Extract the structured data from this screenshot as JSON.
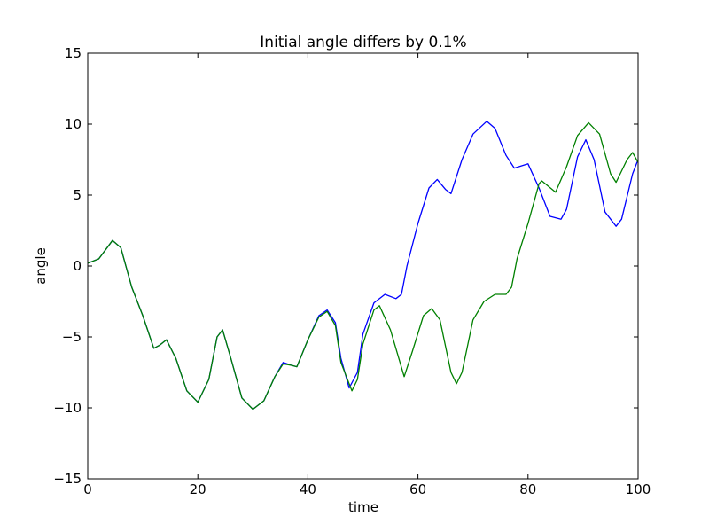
{
  "chart_data": {
    "type": "line",
    "title": "Initial angle differs by 0.1%",
    "x_label": "time",
    "y_label": "angle",
    "xlim": [
      0,
      100
    ],
    "ylim": [
      -15,
      15
    ],
    "xticks": [
      0,
      20,
      40,
      60,
      80,
      100
    ],
    "yticks": [
      {
        "value": -15,
        "label": "−15"
      },
      {
        "value": -10,
        "label": "−10"
      },
      {
        "value": -5,
        "label": "−5"
      },
      0,
      5,
      10,
      15
    ],
    "grid": false,
    "series": [
      {
        "color": "#0000ff",
        "x": [
          0,
          2,
          4.5,
          6,
          8,
          10,
          12,
          13,
          14.3,
          16,
          18,
          20,
          22,
          23.5,
          24.5,
          26,
          28,
          30,
          32,
          34,
          35.5,
          37,
          38,
          40,
          42,
          43.5,
          45,
          46,
          47.5,
          49,
          50,
          52,
          54,
          56,
          57,
          58,
          60,
          62,
          63.5,
          65,
          66,
          68,
          70,
          72.5,
          74,
          76,
          77.5,
          80,
          82,
          84,
          86,
          87,
          89,
          90.5,
          92,
          94,
          96,
          97,
          99,
          100
        ],
        "values": [
          0.2,
          0.5,
          1.8,
          1.3,
          -1.5,
          -3.5,
          -5.8,
          -5.6,
          -5.2,
          -6.5,
          -8.8,
          -9.6,
          -8,
          -5,
          -4.5,
          -6.5,
          -9.3,
          -10.1,
          -9.5,
          -7.8,
          -6.8,
          -7.0,
          -7.1,
          -5.2,
          -3.5,
          -3.1,
          -4,
          -6.5,
          -8.6,
          -7.5,
          -4.8,
          -2.6,
          -2.0,
          -2.3,
          -2,
          0,
          3,
          5.5,
          6.1,
          5.4,
          5.1,
          7.5,
          9.3,
          10.2,
          9.7,
          7.8,
          6.9,
          7.2,
          5.5,
          3.5,
          3.3,
          4,
          7.7,
          8.9,
          7.5,
          3.8,
          2.8,
          3.3,
          6.5,
          7.5
        ]
      },
      {
        "color": "#008000",
        "x": [
          0,
          2,
          4.5,
          6,
          8,
          10,
          12,
          13,
          14.3,
          16,
          18,
          20,
          22,
          23.5,
          24.5,
          26,
          28,
          30,
          32,
          34,
          35.5,
          37,
          38,
          40,
          42,
          43.5,
          45,
          46,
          48,
          49,
          50,
          52,
          53,
          55,
          57.5,
          59,
          61,
          62.5,
          64,
          66,
          67,
          68,
          70,
          72,
          74,
          76,
          77,
          78,
          80,
          82,
          82.5,
          85,
          87,
          89,
          91,
          93,
          95,
          96,
          98,
          99,
          100
        ],
        "values": [
          0.2,
          0.5,
          1.8,
          1.3,
          -1.5,
          -3.5,
          -5.8,
          -5.6,
          -5.2,
          -6.5,
          -8.8,
          -9.6,
          -8,
          -5,
          -4.5,
          -6.5,
          -9.3,
          -10.1,
          -9.5,
          -7.8,
          -6.9,
          -7.0,
          -7.1,
          -5.2,
          -3.6,
          -3.2,
          -4.2,
          -6.8,
          -8.8,
          -8,
          -5.5,
          -3.1,
          -2.8,
          -4.5,
          -7.8,
          -6,
          -3.5,
          -3.0,
          -3.8,
          -7.5,
          -8.3,
          -7.5,
          -3.8,
          -2.5,
          -2,
          -2.0,
          -1.5,
          0.5,
          3,
          5.8,
          6.0,
          5.2,
          7,
          9.2,
          10.1,
          9.3,
          6.5,
          5.9,
          7.5,
          8,
          7.3
        ]
      }
    ]
  }
}
